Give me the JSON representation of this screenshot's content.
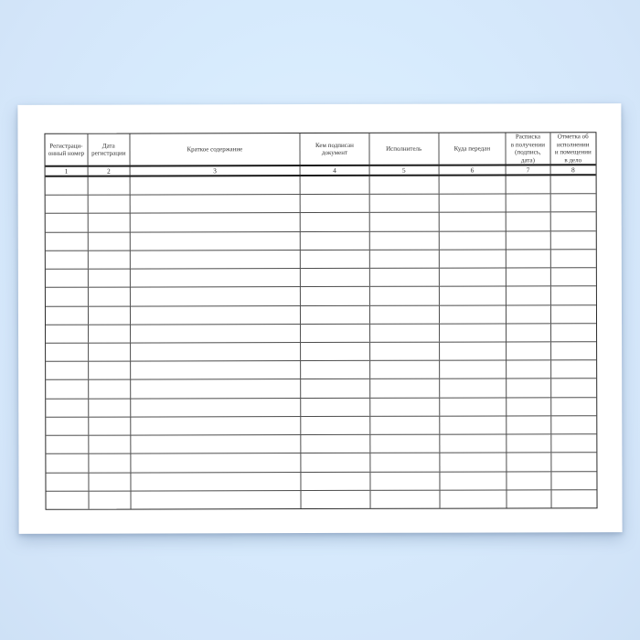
{
  "document": {
    "kind": "registration-journal-blank-form",
    "table": {
      "columns": [
        {
          "number": "1",
          "label": "Регистраци-\nонный номер"
        },
        {
          "number": "2",
          "label": "Дата\nрегистрации"
        },
        {
          "number": "3",
          "label": "Краткое содержание"
        },
        {
          "number": "4",
          "label": "Кем подписан\nдокумент"
        },
        {
          "number": "5",
          "label": "Исполнитель"
        },
        {
          "number": "6",
          "label": "Куда передан"
        },
        {
          "number": "7",
          "label": "Расписка\nв получении\n(подпись,\nдата)"
        },
        {
          "number": "8",
          "label": "Отметка об\nисполнении\nи помещении\nв дело"
        }
      ],
      "empty_row_count": 18
    },
    "colors": {
      "background_blue": "#d7ebfd",
      "page_white": "#ffffff",
      "grid_line": "#4d4d4d",
      "heavy_line": "#1c1c1c",
      "text": "#333333"
    }
  }
}
